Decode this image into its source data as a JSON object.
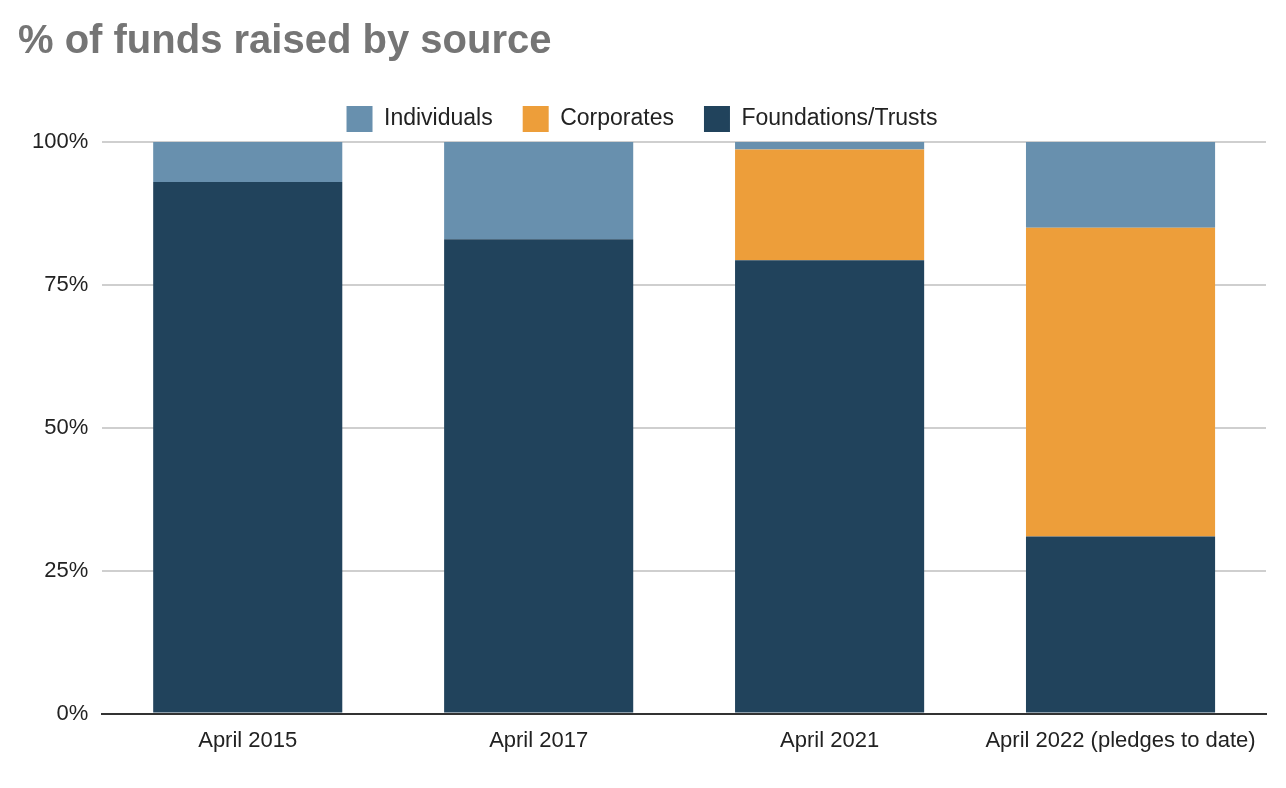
{
  "chart_data": {
    "type": "bar",
    "title": "% of funds raised by source",
    "categories": [
      "April 2015",
      "April 2017",
      "April 2021",
      "April 2022 (pledges to date)"
    ],
    "stacked": true,
    "series": [
      {
        "name": "Foundations/Trusts",
        "color": "#21435c",
        "values": [
          93,
          83,
          79.3,
          31
        ]
      },
      {
        "name": "Corporates",
        "color": "#ed9e3a",
        "values": [
          0,
          0,
          19.4,
          54
        ]
      },
      {
        "name": "Individuals",
        "color": "#6890ae",
        "values": [
          7,
          17,
          1.3,
          15
        ]
      }
    ],
    "ylim": [
      0,
      100
    ],
    "yticks": [
      {
        "value": 0,
        "label": "0%"
      },
      {
        "value": 25,
        "label": "25%"
      },
      {
        "value": 50,
        "label": "50%"
      },
      {
        "value": 75,
        "label": "75%"
      },
      {
        "value": 100,
        "label": "100%"
      }
    ],
    "grid": "y",
    "legend": "top"
  }
}
